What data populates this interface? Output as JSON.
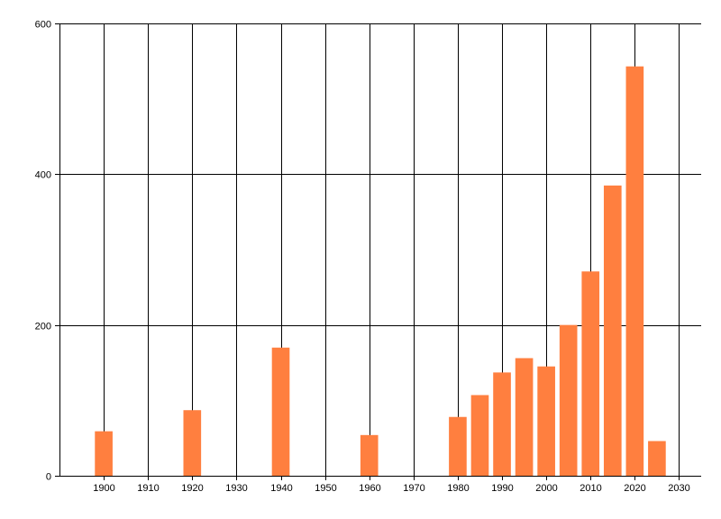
{
  "chart_data": {
    "type": "bar",
    "x": [
      1900,
      1920,
      1940,
      1960,
      1980,
      1985,
      1990,
      1995,
      2000,
      2005,
      2010,
      2015,
      2020,
      2025
    ],
    "values": [
      59,
      87,
      170,
      54,
      78,
      107,
      137,
      156,
      145,
      200,
      271,
      385,
      543,
      46
    ],
    "xlim": [
      1890,
      2035
    ],
    "ylim": [
      0,
      600
    ],
    "x_ticks": [
      1900,
      1910,
      1920,
      1930,
      1940,
      1950,
      1960,
      1970,
      1980,
      1990,
      2000,
      2010,
      2020,
      2030
    ],
    "y_ticks": [
      0,
      200,
      400,
      600
    ],
    "grid": true,
    "bar_color": "#ff7f3f",
    "bar_width": 4,
    "title": "",
    "xlabel": "",
    "ylabel": ""
  }
}
